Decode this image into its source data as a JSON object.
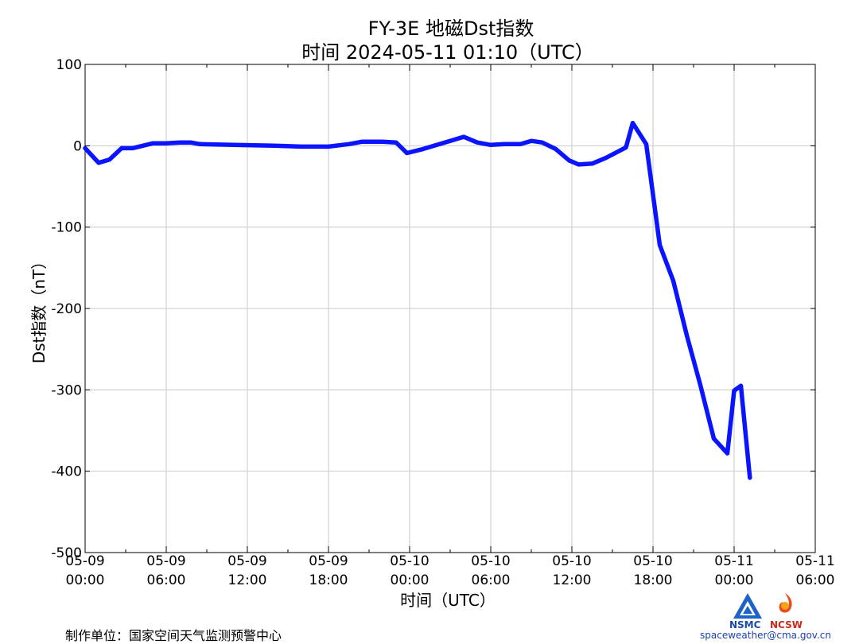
{
  "title": "FY-3E 地磁Dst指数",
  "subtitle": "时间 2024-05-11 01:10（UTC）",
  "footer": "制作单位：国家空间天气监测预警中心",
  "logos": {
    "nsmc": "NSMC",
    "ncsw": "NCSW",
    "email": "spaceweather@cma.gov.cn"
  },
  "colors": {
    "line": "#0a14ff",
    "grid": "#c8c8c8",
    "axis": "#000000"
  },
  "chart_data": {
    "type": "line",
    "title": "FY-3E 地磁Dst指数",
    "subtitle": "时间 2024-05-11 01:10（UTC）",
    "xlabel": "时间（UTC）",
    "ylabel": "Dst指数（nT）",
    "xlim": [
      "2024-05-09 00:00",
      "2024-05-11 06:00"
    ],
    "ylim": [
      -500,
      100
    ],
    "grid": true,
    "y_ticks": [
      100,
      0,
      -100,
      -200,
      -300,
      -400,
      -500
    ],
    "x_ticks": [
      {
        "t": "2024-05-09 00:00",
        "line1": "05-09",
        "line2": "00:00"
      },
      {
        "t": "2024-05-09 06:00",
        "line1": "05-09",
        "line2": "06:00"
      },
      {
        "t": "2024-05-09 12:00",
        "line1": "05-09",
        "line2": "12:00"
      },
      {
        "t": "2024-05-09 18:00",
        "line1": "05-09",
        "line2": "18:00"
      },
      {
        "t": "2024-05-10 00:00",
        "line1": "05-10",
        "line2": "00:00"
      },
      {
        "t": "2024-05-10 06:00",
        "line1": "05-10",
        "line2": "06:00"
      },
      {
        "t": "2024-05-10 12:00",
        "line1": "05-10",
        "line2": "12:00"
      },
      {
        "t": "2024-05-10 18:00",
        "line1": "05-10",
        "line2": "18:00"
      },
      {
        "t": "2024-05-11 00:00",
        "line1": "05-11",
        "line2": "00:00"
      },
      {
        "t": "2024-05-11 06:00",
        "line1": "05-11",
        "line2": "06:00"
      }
    ],
    "series": [
      {
        "color": "#0a14ff",
        "points": [
          [
            "2024-05-09 00:00",
            -3
          ],
          [
            "2024-05-09 01:00",
            -21
          ],
          [
            "2024-05-09 01:48",
            -17
          ],
          [
            "2024-05-09 02:42",
            -3
          ],
          [
            "2024-05-09 03:30",
            -3
          ],
          [
            "2024-05-09 05:00",
            3
          ],
          [
            "2024-05-09 06:00",
            3
          ],
          [
            "2024-05-09 07:00",
            4
          ],
          [
            "2024-05-09 07:48",
            4
          ],
          [
            "2024-05-09 08:30",
            2
          ],
          [
            "2024-05-09 11:00",
            1
          ],
          [
            "2024-05-09 14:00",
            0
          ],
          [
            "2024-05-09 16:00",
            -1
          ],
          [
            "2024-05-09 18:00",
            -1
          ],
          [
            "2024-05-09 19:00",
            1
          ],
          [
            "2024-05-09 19:30",
            2
          ],
          [
            "2024-05-09 20:30",
            5
          ],
          [
            "2024-05-09 22:00",
            5
          ],
          [
            "2024-05-09 23:00",
            4
          ],
          [
            "2024-05-09 23:48",
            -9
          ],
          [
            "2024-05-10 01:00",
            -4
          ],
          [
            "2024-05-10 03:00",
            6
          ],
          [
            "2024-05-10 04:00",
            11
          ],
          [
            "2024-05-10 05:00",
            4
          ],
          [
            "2024-05-10 06:00",
            1
          ],
          [
            "2024-05-10 07:00",
            2
          ],
          [
            "2024-05-10 08:12",
            2
          ],
          [
            "2024-05-10 09:00",
            6
          ],
          [
            "2024-05-10 09:48",
            4
          ],
          [
            "2024-05-10 10:48",
            -4
          ],
          [
            "2024-05-10 11:48",
            -18
          ],
          [
            "2024-05-10 12:30",
            -23
          ],
          [
            "2024-05-10 13:30",
            -22
          ],
          [
            "2024-05-10 14:30",
            -15
          ],
          [
            "2024-05-10 16:00",
            -2
          ],
          [
            "2024-05-10 16:30",
            28
          ],
          [
            "2024-05-10 17:30",
            2
          ],
          [
            "2024-05-10 18:30",
            -122
          ],
          [
            "2024-05-10 19:30",
            -166
          ],
          [
            "2024-05-10 20:30",
            -233
          ],
          [
            "2024-05-10 21:30",
            -294
          ],
          [
            "2024-05-10 22:30",
            -360
          ],
          [
            "2024-05-10 23:30",
            -378
          ],
          [
            "2024-05-11 00:00",
            -301
          ],
          [
            "2024-05-11 00:30",
            -295
          ],
          [
            "2024-05-11 01:10",
            -408
          ]
        ]
      }
    ]
  }
}
